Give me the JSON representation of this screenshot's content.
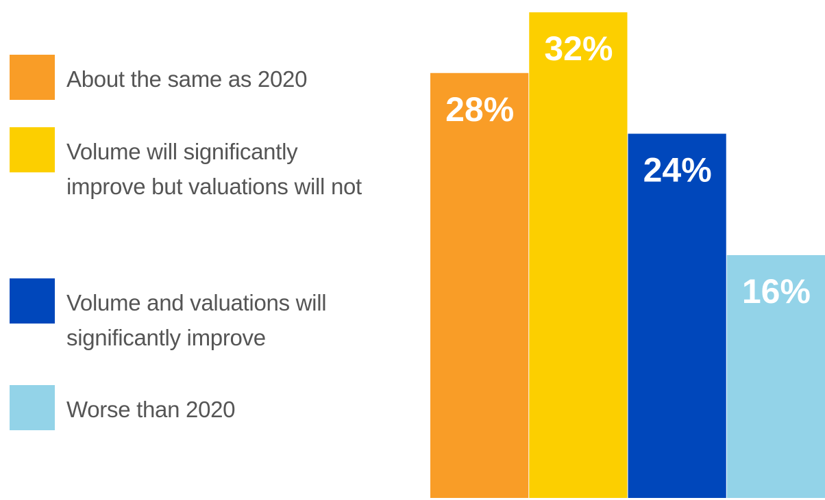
{
  "chart_data": {
    "type": "bar",
    "categories": [
      null
    ],
    "series": [
      {
        "name": "About the same as 2020",
        "color": "#f99d27",
        "values": [
          28
        ],
        "value_labels": [
          "28%"
        ]
      },
      {
        "name": "Volume will significantly improve but valuations will not",
        "color": "#fccf00",
        "values": [
          32
        ],
        "value_labels": [
          "32%"
        ]
      },
      {
        "name": "Volume and valuations will significantly improve",
        "color": "#0047bb",
        "values": [
          24
        ],
        "value_labels": [
          "24%"
        ]
      },
      {
        "name": "Worse than 2020",
        "color": "#93d3e8",
        "values": [
          16
        ],
        "value_labels": [
          "16%"
        ]
      }
    ],
    "ylim": [
      0,
      32
    ]
  }
}
